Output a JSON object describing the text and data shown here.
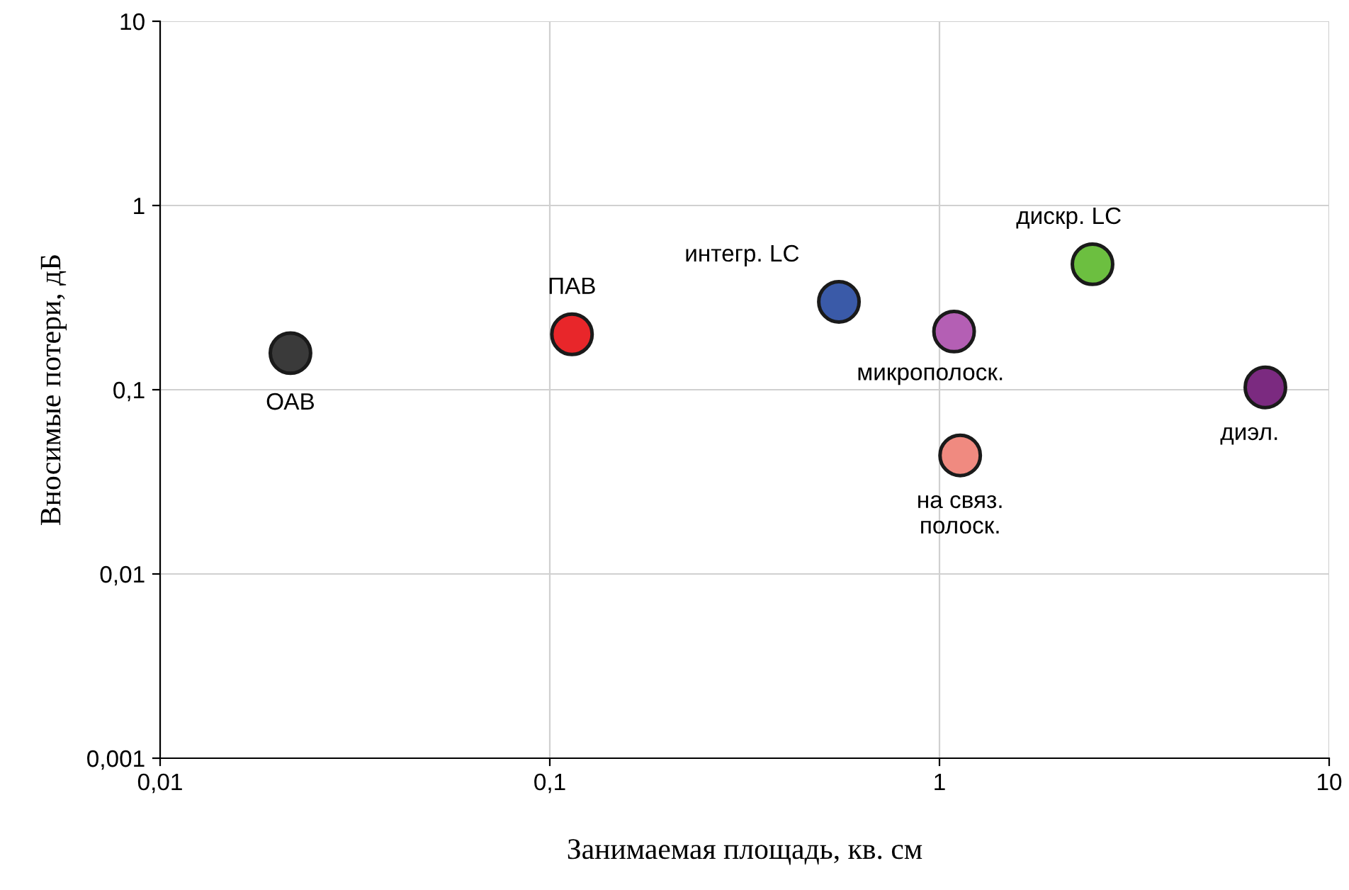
{
  "chart_data": {
    "type": "scatter",
    "log": "xy",
    "grid": true,
    "legend": false,
    "marker": "circle",
    "xlabel": "Занимаемая площадь, кв. см",
    "ylabel": "Вносимые потери, дБ",
    "xlim": [
      0.01,
      10
    ],
    "ylim": [
      0.001,
      10
    ],
    "xticks": [
      {
        "value": 0.01,
        "label": "0,01"
      },
      {
        "value": 0.1,
        "label": "0,1"
      },
      1,
      10
    ],
    "yticks": [
      {
        "value": 0.001,
        "label": "0,001"
      },
      {
        "value": 0.01,
        "label": "0,01"
      },
      {
        "value": 0.1,
        "label": "0,1"
      },
      1,
      10
    ],
    "series": [
      {
        "name": "ОАВ",
        "color": "#3a3a3a",
        "x": [
          0.0216
        ],
        "values": [
          0.158
        ]
      },
      {
        "name": "ПАВ",
        "color": "#e8262a",
        "x": [
          0.114
        ],
        "values": [
          0.2
        ]
      },
      {
        "name": "интегр. LC",
        "color": "#3a5aa8",
        "x": [
          0.552
        ],
        "values": [
          0.3
        ]
      },
      {
        "name": "микрополоск.",
        "color": "#b45fb4",
        "x": [
          1.09
        ],
        "values": [
          0.207
        ]
      },
      {
        "name": "на связ.\nполоск.",
        "color": "#f08a80",
        "x": [
          1.13
        ],
        "values": [
          0.044
        ]
      },
      {
        "name": "дискр. LC",
        "color": "#6cbf40",
        "x": [
          2.47
        ],
        "values": [
          0.48
        ]
      },
      {
        "name": "диэл.",
        "color": "#7b2a80",
        "x": [
          6.86
        ],
        "values": [
          0.103
        ]
      }
    ]
  }
}
